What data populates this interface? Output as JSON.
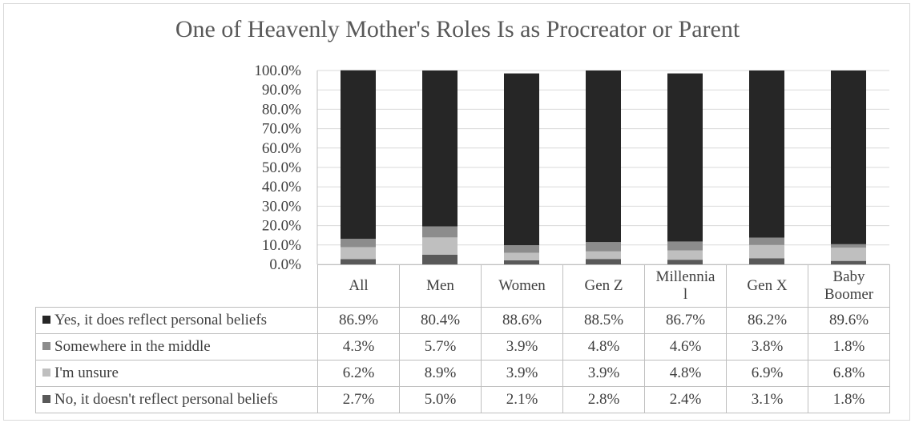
{
  "chart_data": {
    "type": "bar",
    "stacked": true,
    "title": "One of Heavenly Mother's Roles Is as Procreator or Parent",
    "categories": [
      "All",
      "Men",
      "Women",
      "Gen Z",
      "Millennial",
      "Gen X",
      "Baby Boomer"
    ],
    "category_labels": [
      [
        "All"
      ],
      [
        "Men"
      ],
      [
        "Women"
      ],
      [
        "Gen Z"
      ],
      [
        "Millennia",
        "l"
      ],
      [
        "Gen X"
      ],
      [
        "Baby",
        "Boomer"
      ]
    ],
    "ylim": [
      0,
      100
    ],
    "y_ticks": [
      "0.0%",
      "10.0%",
      "20.0%",
      "30.0%",
      "40.0%",
      "50.0%",
      "60.0%",
      "70.0%",
      "80.0%",
      "90.0%",
      "100.0%"
    ],
    "grid": true,
    "data_table": true,
    "series": [
      {
        "name": "No, it doesn't reflect personal beliefs",
        "color": "#595959",
        "values": [
          2.7,
          5.0,
          2.1,
          2.8,
          2.4,
          3.1,
          1.8
        ],
        "labels": [
          "2.7%",
          "5.0%",
          "2.1%",
          "2.8%",
          "2.4%",
          "3.1%",
          "1.8%"
        ]
      },
      {
        "name": "I'm unsure",
        "color": "#bfbfbf",
        "values": [
          6.2,
          8.9,
          3.9,
          3.9,
          4.8,
          6.9,
          6.8
        ],
        "labels": [
          "6.2%",
          "8.9%",
          "3.9%",
          "3.9%",
          "4.8%",
          "6.9%",
          "6.8%"
        ]
      },
      {
        "name": "Somewhere in the middle",
        "color": "#8c8c8c",
        "values": [
          4.3,
          5.7,
          3.9,
          4.8,
          4.6,
          3.8,
          1.8
        ],
        "labels": [
          "4.3%",
          "5.7%",
          "3.9%",
          "4.8%",
          "4.6%",
          "3.8%",
          "1.8%"
        ]
      },
      {
        "name": "Yes, it does reflect personal beliefs",
        "color": "#262626",
        "values": [
          86.9,
          80.4,
          88.6,
          88.5,
          86.7,
          86.2,
          89.6
        ],
        "labels": [
          "86.9%",
          "80.4%",
          "88.6%",
          "88.5%",
          "86.7%",
          "86.2%",
          "89.6%"
        ]
      }
    ],
    "table_row_order": [
      3,
      2,
      1,
      0
    ]
  }
}
